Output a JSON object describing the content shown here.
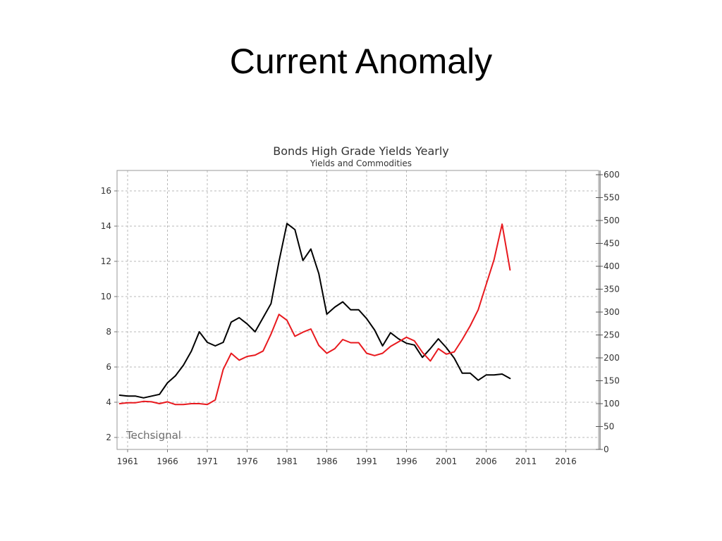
{
  "slide": {
    "title": "Current Anomaly"
  },
  "chart_data": {
    "type": "line",
    "title": "Bonds High Grade Yields Yearly",
    "subtitle": "Yields and Commodities",
    "watermark": "Techsignal",
    "grid": true,
    "x_ticks": [
      1961,
      1966,
      1971,
      1976,
      1981,
      1986,
      1991,
      1996,
      2001,
      2006,
      2011,
      2016
    ],
    "xlim": [
      1960,
      2020
    ],
    "left_axis": {
      "ticks": [
        2,
        4,
        6,
        8,
        10,
        12,
        14,
        16
      ],
      "ylim": [
        1.5,
        17.1
      ]
    },
    "right_axis": {
      "ticks": [
        0,
        50,
        100,
        150,
        200,
        250,
        300,
        350,
        400,
        450,
        500,
        550,
        600
      ],
      "ylim": [
        0,
        600
      ]
    },
    "series": [
      {
        "axis": "left",
        "color": "#000000",
        "x": [
          1960,
          1961,
          1962,
          1963,
          1964,
          1965,
          1966,
          1967,
          1968,
          1969,
          1970,
          1971,
          1972,
          1973,
          1974,
          1975,
          1976,
          1977,
          1978,
          1979,
          1980,
          1981,
          1982,
          1983,
          1984,
          1985,
          1986,
          1987,
          1988,
          1989,
          1990,
          1991,
          1992,
          1993,
          1994,
          1995,
          1996,
          1997,
          1998,
          1999,
          2000,
          2001,
          2002,
          2003,
          2004,
          2005,
          2006,
          2007,
          2008,
          2009
        ],
        "values": [
          4.4,
          4.35,
          4.35,
          4.25,
          4.35,
          4.45,
          5.1,
          5.5,
          6.1,
          6.9,
          8.0,
          7.4,
          7.2,
          7.4,
          8.55,
          8.8,
          8.45,
          8.0,
          8.8,
          9.6,
          12.0,
          14.15,
          13.8,
          12.05,
          12.7,
          11.3,
          9.0,
          9.4,
          9.7,
          9.25,
          9.25,
          8.75,
          8.1,
          7.2,
          7.95,
          7.6,
          7.35,
          7.25,
          6.55,
          7.05,
          7.6,
          7.1,
          6.5,
          5.65,
          5.65,
          5.25,
          5.55,
          5.55,
          5.6,
          5.35
        ]
      },
      {
        "axis": "right",
        "color": "#e8191e",
        "x": [
          1960,
          1961,
          1962,
          1963,
          1964,
          1965,
          1966,
          1967,
          1968,
          1969,
          1970,
          1971,
          1972,
          1973,
          1974,
          1975,
          1976,
          1977,
          1978,
          1979,
          1980,
          1981,
          1982,
          1983,
          1984,
          1985,
          1986,
          1987,
          1988,
          1989,
          1990,
          1991,
          1992,
          1993,
          1994,
          1995,
          1996,
          1997,
          1998,
          1999,
          2000,
          2001,
          2002,
          2003,
          2004,
          2005,
          2006,
          2007,
          2008,
          2009
        ],
        "values": [
          100,
          102,
          102,
          105,
          104,
          100,
          104,
          98,
          98,
          100,
          100,
          98,
          108,
          175,
          210,
          195,
          203,
          206,
          215,
          252,
          295,
          282,
          247,
          256,
          263,
          227,
          210,
          220,
          240,
          233,
          233,
          210,
          205,
          210,
          225,
          235,
          245,
          237,
          212,
          193,
          220,
          208,
          213,
          240,
          270,
          305,
          360,
          415,
          492,
          392
        ]
      }
    ]
  }
}
